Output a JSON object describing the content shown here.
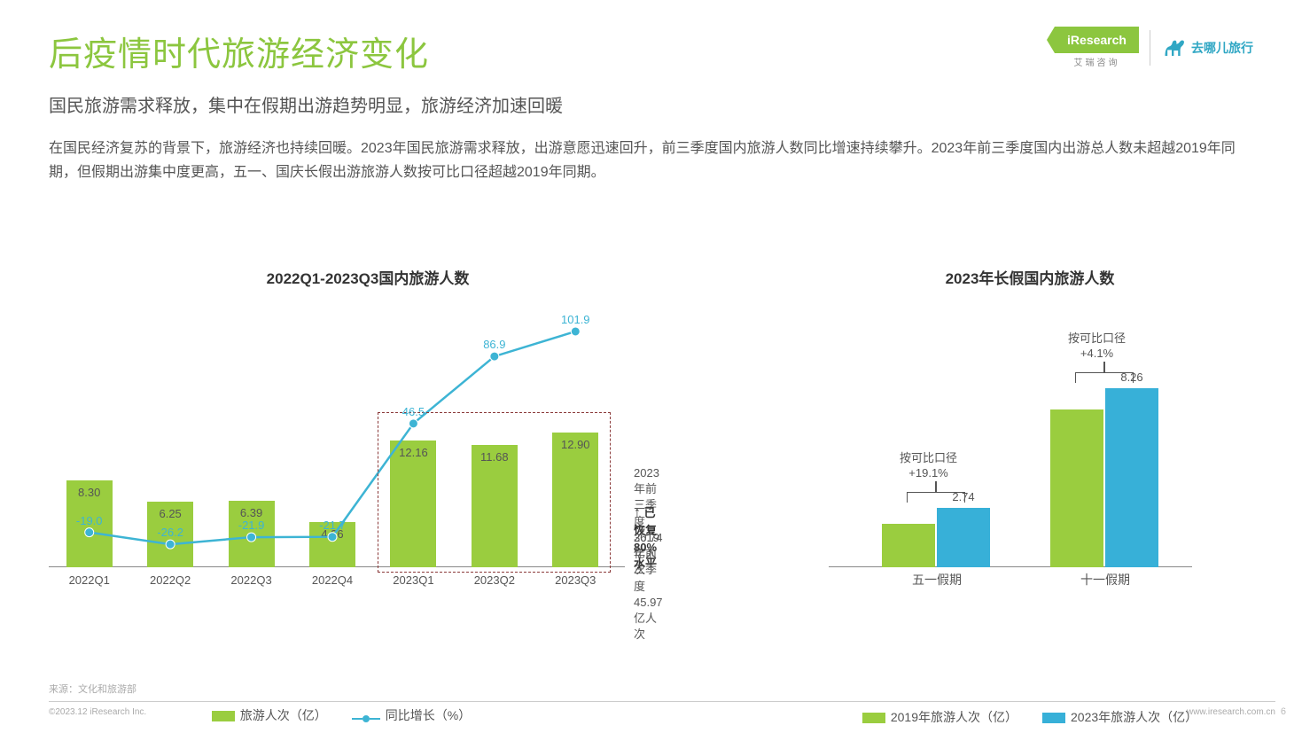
{
  "header": {
    "logo_iresearch": "iResearch",
    "logo_iresearch_sub": "艾瑞咨询",
    "logo_qunar": "去哪儿旅行",
    "title": "后疫情时代旅游经济变化",
    "subtitle": "国民旅游需求释放，集中在假期出游趋势明显，旅游经济加速回暖",
    "body": "在国民经济复苏的背景下，旅游经济也持续回暖。2023年国民旅游需求释放，出游意愿迅速回升，前三季度国内旅游人数同比增速持续攀升。2023年前三季度国内出游总人数未超越2019年同期，但假期出游集中度更高，五一、国庆长假出游旅游人数按可比口径超越2019年同期。"
  },
  "chart_left": {
    "type": "bar+line",
    "title": "2022Q1-2023Q3国内旅游人数",
    "categories": [
      "2022Q1",
      "2022Q2",
      "2022Q3",
      "2022Q4",
      "2023Q1",
      "2023Q2",
      "2023Q3"
    ],
    "bar_values": [
      8.3,
      6.25,
      6.39,
      4.36,
      12.16,
      11.68,
      12.9
    ],
    "bar_value_labels": [
      "8.30",
      "6.25",
      "6.39",
      "4.36",
      "12.16",
      "11.68",
      "12.90"
    ],
    "bar_max": 14,
    "bar_color": "#9acd3f",
    "line_values": [
      -19.0,
      -26.2,
      -21.9,
      -21.7,
      46.5,
      86.9,
      101.9
    ],
    "line_value_labels": [
      "-19.0",
      "-26.2",
      "-21.9",
      "-21.7",
      "46.5",
      "86.9",
      "101.9"
    ],
    "line_min": -40,
    "line_max": 120,
    "line_color": "#3db4d4",
    "marker_color": "#3db4d4",
    "dashed_box_color": "#8b3a3a",
    "annot1_l1": "2023年前三季度",
    "annot1_l2": "36.74亿人次",
    "annot2": "已恢复80%水平",
    "annot3_l1": "2019年前三季度",
    "annot3_l2": "45.97亿人次",
    "legend_bar": "旅游人次（亿）",
    "legend_line": "同比增长（%）"
  },
  "chart_right": {
    "type": "grouped-bar",
    "title": "2023年长假国内旅游人数",
    "groups": [
      "五一假期",
      "十一假期"
    ],
    "series2019_color": "#9acd3f",
    "series2023_color": "#37b0d8",
    "g1_2019": 2.0,
    "g1_2023": 2.74,
    "g1_2023_label": "2.74",
    "g2_2019": 7.3,
    "g2_2023": 8.26,
    "g2_2023_label": "8.26",
    "bar_max": 9.0,
    "callout1_l1": "按可比口径",
    "callout1_l2": "+19.1%",
    "callout2_l1": "按可比口径",
    "callout2_l2": "+4.1%",
    "legend_2019": "2019年旅游人次（亿）",
    "legend_2023": "2023年旅游人次（亿）"
  },
  "footer": {
    "source": "来源：文化和旅游部",
    "copyright": "©2023.12 iResearch Inc.",
    "url": "www.iresearch.com.cn",
    "page": "6"
  },
  "colors": {
    "title": "#8cc63f",
    "text": "#555555",
    "muted": "#aaaaaa"
  }
}
